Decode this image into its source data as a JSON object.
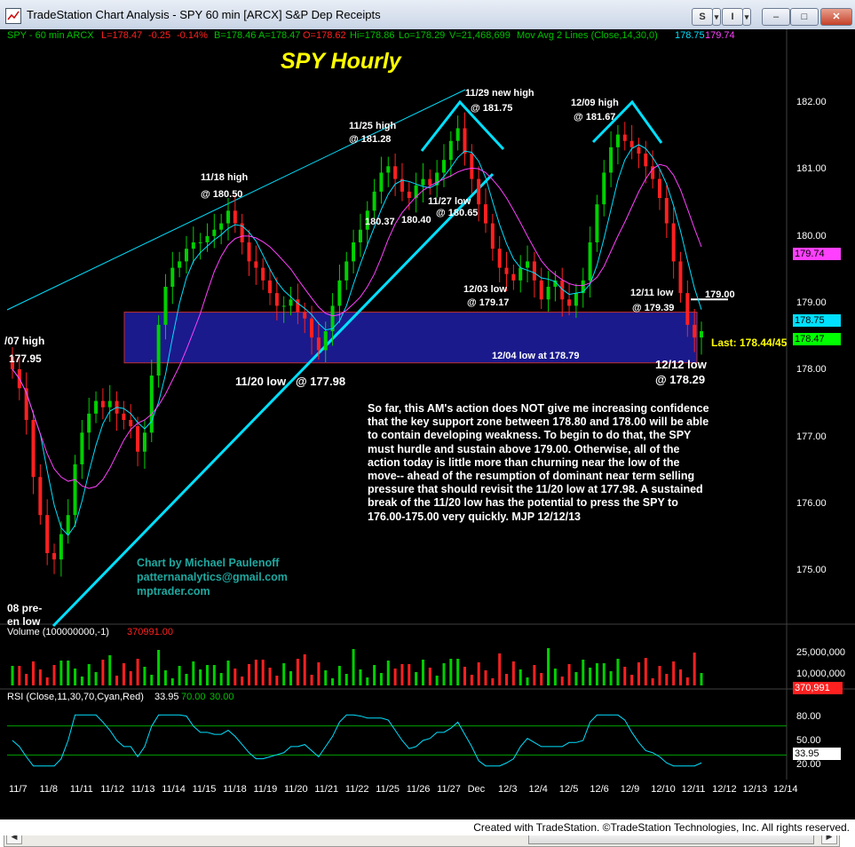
{
  "window": {
    "title": "TradeStation Chart Analysis - SPY 60 min [ARCX] S&P Dep Receipts",
    "buttons": {
      "s": "S",
      "s_dd": "▾",
      "info": "I",
      "info_dd": "▾",
      "minimize": "–",
      "restore": "□",
      "close": "✕"
    }
  },
  "header": {
    "symbol": "SPY - 60 min  ARCX",
    "last": "L=178.47",
    "change": "-0.25",
    "pct": "-0.14%",
    "bid": "B=178.46",
    "ask": "A=178.47",
    "open": "O=178.62",
    "high": "Hi=178.86",
    "low": "Lo=178.29",
    "volume": "V=21,468,699",
    "ma_label": "Mov Avg 2 Lines (Close,14,30,0)",
    "ma_fast": "178.75",
    "ma_slow": "179.74"
  },
  "chart_title": "SPY Hourly",
  "annotations": {
    "a1": "11/29 new high",
    "a1b": "@ 181.75",
    "a2": "12/09 high",
    "a2b": "@ 181.67",
    "a3": "11/25 high",
    "a3b": "@ 181.28",
    "a4": "11/18 high",
    "a4b": "@ 180.50",
    "a5": "180.37",
    "a6": "180.40",
    "a7": "11/27 low",
    "a7b": "@ 180.65",
    "a8": "12/03 low",
    "a8b": "@ 179.17",
    "a9": "12/11 low",
    "a9b": "@ 179.39",
    "a10": "179.00",
    "a11": "/07 high",
    "a11b": "177.95",
    "a12": "12/04 low at 178.79",
    "a13": "11/20 low",
    "a13b": "@ 177.98",
    "a14": "12/12 low",
    "a14b": "@ 178.29",
    "a15": "Last: 178.44/45",
    "a16": "08 pre-",
    "a16b": "en low"
  },
  "commentary": [
    "So far, this AM's action does NOT give me increasing confidence",
    "that the key support zone between 178.80 and 178.00 will be able",
    "to contain developing weakness. To begin to do that, the SPY",
    "must hurdle and sustain above 179.00.  Otherwise, all of the",
    "action today is little more than churning near the low of the",
    "move-- ahead of the resumption of dominant near term selling",
    "pressure that should revisit the 11/20 low at 177.98. A sustained",
    "break of the 11/20 low has the potential to press the SPY to",
    "176.00-175.00 very quickly.  MJP  12/12/13"
  ],
  "credits": [
    "Chart by Michael Paulenoff",
    "patternanalytics@gmail.com",
    "mptrader.com"
  ],
  "price_axis": [
    "182.00",
    "181.00",
    "180.00",
    "179.00",
    "178.00",
    "177.00",
    "176.00",
    "175.00"
  ],
  "price_tags": {
    "ma_slow": "179.74",
    "ma_fast": "178.75",
    "last": "178.47"
  },
  "volume_panel": {
    "label": "Volume (100000000,-1)",
    "value": "370991.00",
    "axis": [
      "25,000,000",
      "10,000,000"
    ],
    "tag": "370,991"
  },
  "rsi_panel": {
    "label": "RSI (Close,11,30,70,Cyan,Red)",
    "value": "33.95",
    "ob": "70.00",
    "os": "30.00",
    "axis": [
      "80.00",
      "50.00",
      "20.00"
    ],
    "tag": "33.95"
  },
  "x_axis": [
    "11/7",
    "11/8",
    "11/11",
    "11/12",
    "11/13",
    "11/14",
    "11/15",
    "11/18",
    "11/19",
    "11/20",
    "11/21",
    "11/22",
    "11/25",
    "11/26",
    "11/27",
    "Dec",
    "12/3",
    "12/4",
    "12/5",
    "12/6",
    "12/9",
    "12/10",
    "12/11",
    "12/12",
    "12/13",
    "12/14"
  ],
  "footer": "Created with TradeStation. ©TradeStation Technologies, Inc. All rights reserved.",
  "colors": {
    "background": "#000000",
    "up": "#00d000",
    "down": "#ff2020",
    "ma_fast": "#00e0ff",
    "ma_slow": "#ff40ff",
    "support_zone": "#1a1a8c",
    "title": "#ffff00"
  },
  "chart_data": {
    "type": "candlestick",
    "title": "SPY Hourly",
    "ylim": [
      174.3,
      182.7
    ],
    "support_zone": [
      178.0,
      178.8
    ],
    "resistance_line": 179.0,
    "series": [
      {
        "name": "Close (hourly, approx.)",
        "values": [
          177.9,
          177.6,
          177.1,
          176.2,
          175.6,
          175.0,
          174.9,
          175.3,
          175.6,
          176.4,
          176.9,
          177.2,
          177.4,
          177.3,
          177.4,
          177.2,
          177.1,
          177.0,
          176.6,
          176.9,
          177.8,
          178.6,
          179.2,
          179.5,
          179.6,
          179.8,
          179.9,
          179.9,
          180.0,
          180.1,
          180.2,
          180.4,
          180.2,
          179.9,
          179.6,
          179.5,
          179.3,
          179.1,
          178.9,
          178.9,
          179.0,
          178.8,
          178.7,
          178.4,
          178.2,
          178.5,
          178.9,
          179.3,
          179.6,
          179.9,
          180.1,
          180.4,
          180.7,
          181.0,
          181.1,
          180.9,
          180.7,
          180.6,
          180.8,
          180.9,
          180.8,
          181.0,
          181.2,
          181.5,
          181.7,
          181.3,
          180.9,
          180.5,
          180.2,
          179.8,
          179.5,
          179.4,
          179.3,
          179.5,
          179.6,
          179.3,
          179.0,
          179.2,
          179.3,
          179.0,
          178.9,
          179.1,
          179.3,
          179.9,
          180.5,
          181.0,
          181.4,
          181.6,
          181.5,
          181.4,
          181.3,
          181.1,
          180.9,
          180.6,
          180.2,
          179.6,
          179.1,
          178.6,
          178.4,
          178.5
        ]
      },
      {
        "name": "Mov Avg 14",
        "values": []
      },
      {
        "name": "Mov Avg 30",
        "values": []
      }
    ]
  }
}
